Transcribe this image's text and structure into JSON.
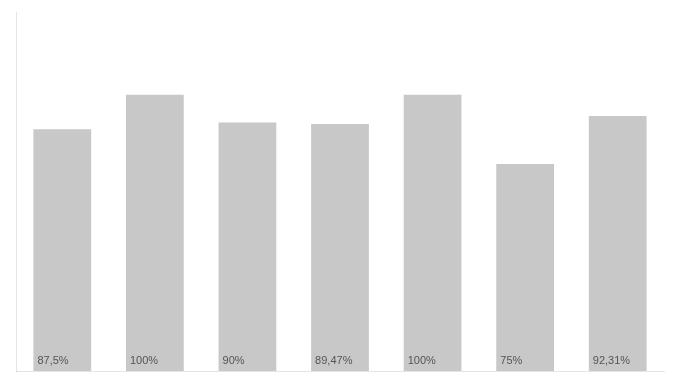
{
  "chart_data": {
    "type": "bar",
    "categories": [
      null,
      null,
      null,
      null,
      null,
      null,
      null
    ],
    "values": [
      87.5,
      100.0,
      90.0,
      89.47,
      100.0,
      75.0,
      92.31
    ],
    "value_labels": [
      "87,5%",
      "100%",
      "90%",
      "89,47%",
      "100%",
      "75%",
      "92,31%"
    ],
    "color": "#c8c8c8",
    "ylim": [
      0,
      130
    ],
    "grid": false,
    "data_labels": true,
    "tick_labels": false
  }
}
